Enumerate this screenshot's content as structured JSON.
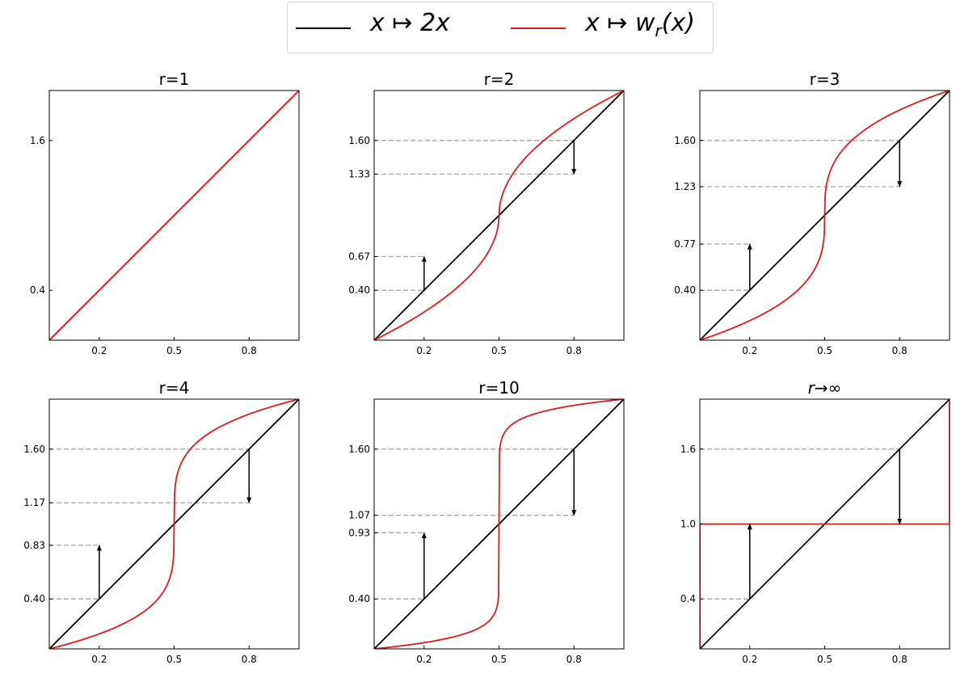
{
  "legend": {
    "items": [
      {
        "label_pre": "x ↦ 2x",
        "sub": "",
        "label_post": "",
        "color": "#000000"
      },
      {
        "label_pre": "x ↦ w",
        "sub": "r",
        "label_post": "(x)",
        "color": "#e31a1c"
      }
    ]
  },
  "chart_data": [
    {
      "type": "line",
      "title": "r=1",
      "r": 1,
      "xlim": [
        0,
        1
      ],
      "ylim": [
        0,
        2
      ],
      "xticks": [
        0.2,
        0.5,
        0.8
      ],
      "xtick_labels": [
        "0.2",
        "0.5",
        "0.8"
      ],
      "yticks": [
        0.4,
        1.6
      ],
      "ytick_labels": [
        "0.4",
        "1.6"
      ],
      "series": [
        {
          "fn": "2x",
          "color": "#000000"
        },
        {
          "fn": "w_r",
          "color": "#e31a1c"
        }
      ],
      "arrows": [],
      "guides": []
    },
    {
      "type": "line",
      "title": "r=2",
      "r": 2,
      "xlim": [
        0,
        1
      ],
      "ylim": [
        0,
        2
      ],
      "xticks": [
        0.2,
        0.5,
        0.8
      ],
      "xtick_labels": [
        "0.2",
        "0.5",
        "0.8"
      ],
      "yticks": [
        0.4,
        0.67,
        1.33,
        1.6
      ],
      "ytick_labels": [
        "0.40",
        "0.67",
        "1.33",
        "1.60"
      ],
      "series": [
        {
          "fn": "2x",
          "color": "#000000"
        },
        {
          "fn": "w_r",
          "color": "#e31a1c"
        }
      ],
      "arrows": [
        {
          "x": 0.2,
          "from": 0.4,
          "to": 0.67
        },
        {
          "x": 0.8,
          "from": 1.6,
          "to": 1.33
        }
      ],
      "guides": [
        {
          "x": 0.2,
          "y": 0.4
        },
        {
          "x": 0.2,
          "y": 0.67
        },
        {
          "x": 0.8,
          "y": 1.6
        },
        {
          "x": 0.8,
          "y": 1.33
        }
      ]
    },
    {
      "type": "line",
      "title": "r=3",
      "r": 3,
      "xlim": [
        0,
        1
      ],
      "ylim": [
        0,
        2
      ],
      "xticks": [
        0.2,
        0.5,
        0.8
      ],
      "xtick_labels": [
        "0.2",
        "0.5",
        "0.8"
      ],
      "yticks": [
        0.4,
        0.77,
        1.23,
        1.6
      ],
      "ytick_labels": [
        "0.40",
        "0.77",
        "1.23",
        "1.60"
      ],
      "series": [
        {
          "fn": "2x",
          "color": "#000000"
        },
        {
          "fn": "w_r",
          "color": "#e31a1c"
        }
      ],
      "arrows": [
        {
          "x": 0.2,
          "from": 0.4,
          "to": 0.77
        },
        {
          "x": 0.8,
          "from": 1.6,
          "to": 1.23
        }
      ],
      "guides": [
        {
          "x": 0.2,
          "y": 0.4
        },
        {
          "x": 0.2,
          "y": 0.77
        },
        {
          "x": 0.8,
          "y": 1.6
        },
        {
          "x": 0.8,
          "y": 1.23
        }
      ]
    },
    {
      "type": "line",
      "title": "r=4",
      "r": 4,
      "xlim": [
        0,
        1
      ],
      "ylim": [
        0,
        2
      ],
      "xticks": [
        0.2,
        0.5,
        0.8
      ],
      "xtick_labels": [
        "0.2",
        "0.5",
        "0.8"
      ],
      "yticks": [
        0.4,
        0.83,
        1.17,
        1.6
      ],
      "ytick_labels": [
        "0.40",
        "0.83",
        "1.17",
        "1.60"
      ],
      "series": [
        {
          "fn": "2x",
          "color": "#000000"
        },
        {
          "fn": "w_r",
          "color": "#e31a1c"
        }
      ],
      "arrows": [
        {
          "x": 0.2,
          "from": 0.4,
          "to": 0.83
        },
        {
          "x": 0.8,
          "from": 1.6,
          "to": 1.17
        }
      ],
      "guides": [
        {
          "x": 0.2,
          "y": 0.4
        },
        {
          "x": 0.2,
          "y": 0.83
        },
        {
          "x": 0.8,
          "y": 1.6
        },
        {
          "x": 0.8,
          "y": 1.17
        }
      ]
    },
    {
      "type": "line",
      "title": "r=10",
      "r": 10,
      "xlim": [
        0,
        1
      ],
      "ylim": [
        0,
        2
      ],
      "xticks": [
        0.2,
        0.5,
        0.8
      ],
      "xtick_labels": [
        "0.2",
        "0.5",
        "0.8"
      ],
      "yticks": [
        0.4,
        0.93,
        1.07,
        1.6
      ],
      "ytick_labels": [
        "0.40",
        "0.93",
        "1.07",
        "1.60"
      ],
      "series": [
        {
          "fn": "2x",
          "color": "#000000"
        },
        {
          "fn": "w_r",
          "color": "#e31a1c"
        }
      ],
      "arrows": [
        {
          "x": 0.2,
          "from": 0.4,
          "to": 0.93
        },
        {
          "x": 0.8,
          "from": 1.6,
          "to": 1.07
        }
      ],
      "guides": [
        {
          "x": 0.2,
          "y": 0.4
        },
        {
          "x": 0.2,
          "y": 0.93
        },
        {
          "x": 0.8,
          "y": 1.6
        },
        {
          "x": 0.8,
          "y": 1.07
        }
      ]
    },
    {
      "type": "line",
      "title": "r→∞",
      "title_italic_prefix": "r",
      "r": "inf",
      "xlim": [
        0,
        1
      ],
      "ylim": [
        0,
        2
      ],
      "xticks": [
        0.2,
        0.5,
        0.8
      ],
      "xtick_labels": [
        "0.2",
        "0.5",
        "0.8"
      ],
      "yticks": [
        0.4,
        1.0,
        1.6
      ],
      "ytick_labels": [
        "0.4",
        "1.0",
        "1.6"
      ],
      "series": [
        {
          "fn": "2x",
          "color": "#000000"
        },
        {
          "fn": "w_r",
          "color": "#e31a1c"
        }
      ],
      "arrows": [
        {
          "x": 0.2,
          "from": 0.4,
          "to": 1.0
        },
        {
          "x": 0.8,
          "from": 1.6,
          "to": 1.0
        }
      ],
      "guides": [
        {
          "x": 0.2,
          "y": 0.4
        },
        {
          "x": 0.8,
          "y": 1.6
        }
      ]
    }
  ]
}
